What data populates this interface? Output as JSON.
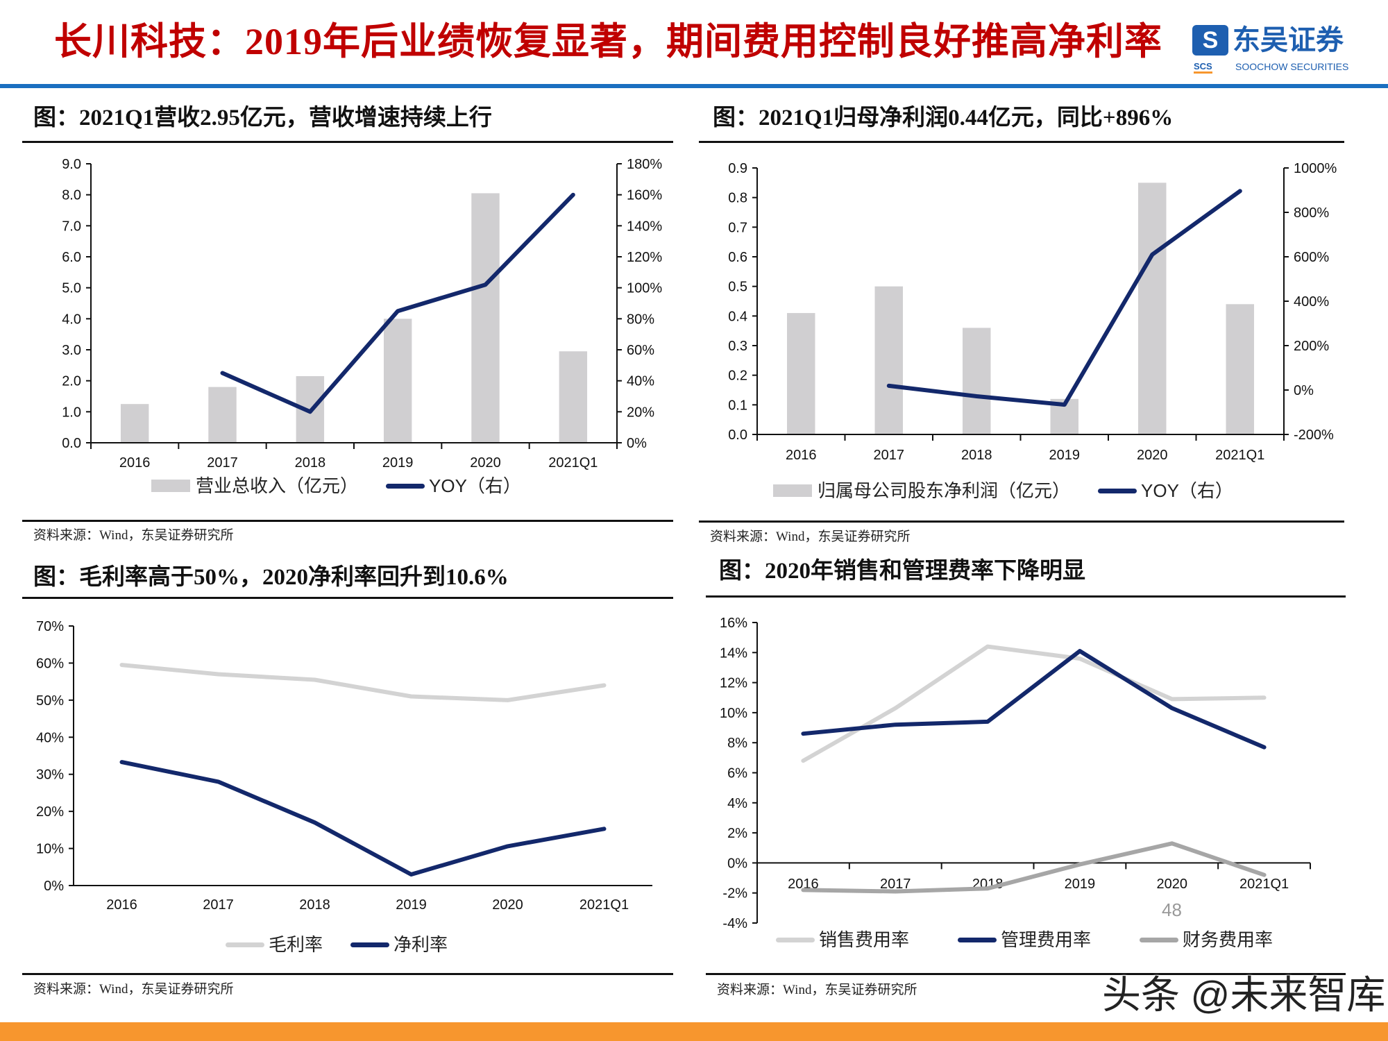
{
  "header": {
    "title": "长川科技：2019年后业绩恢复显著，期间费用控制良好推高净利率",
    "logo": {
      "mark": "S",
      "cn": "东吴证券",
      "scs": "SCS",
      "en": "SOOCHOW SECURITIES"
    },
    "accent_color": "#1a6fc0",
    "title_color": "#c00000"
  },
  "panels": [
    {
      "title": "图：2021Q1营收2.95亿元，营收增速持续上行",
      "source": "资料来源：Wind，东吴证券研究所"
    },
    {
      "title": "图：2021Q1归母净利润0.44亿元，同比+896%",
      "source": "资料来源：Wind，东吴证券研究所"
    },
    {
      "title": "图：毛利率高于50%，2020净利率回升到10.6%",
      "source": "资料来源：Wind，东吴证券研究所"
    },
    {
      "title": "图：2020年销售和管理费率下降明显",
      "source": "资料来源：Wind，东吴证券研究所"
    }
  ],
  "chart_data": [
    {
      "type": "bar+line",
      "categories": [
        "2016",
        "2017",
        "2018",
        "2019",
        "2020",
        "2021Q1"
      ],
      "y_left": {
        "range": [
          0,
          9
        ],
        "ticks": [
          0,
          1,
          2,
          3,
          4,
          5,
          6,
          7,
          8,
          9
        ],
        "tick_labels": [
          "0.0",
          "1.0",
          "2.0",
          "3.0",
          "4.0",
          "5.0",
          "6.0",
          "7.0",
          "8.0",
          "9.0"
        ]
      },
      "y_right": {
        "range": [
          0,
          180
        ],
        "ticks": [
          0,
          20,
          40,
          60,
          80,
          100,
          120,
          140,
          160,
          180
        ],
        "tick_labels": [
          "0%",
          "20%",
          "40%",
          "60%",
          "80%",
          "100%",
          "120%",
          "140%",
          "160%",
          "180%"
        ]
      },
      "series": [
        {
          "name": "营业总收入（亿元）",
          "type": "bar",
          "axis": "left",
          "color": "#d0cfd1",
          "values": [
            1.25,
            1.8,
            2.15,
            4.0,
            8.05,
            2.95
          ]
        },
        {
          "name": "YOY（右）",
          "type": "line",
          "axis": "right",
          "color": "#13286b",
          "values": [
            null,
            45,
            20,
            85,
            102,
            160
          ]
        }
      ],
      "grid": false,
      "legend": "bottom"
    },
    {
      "type": "bar+line",
      "categories": [
        "2016",
        "2017",
        "2018",
        "2019",
        "2020",
        "2021Q1"
      ],
      "y_left": {
        "range": [
          0,
          0.9
        ],
        "ticks": [
          0,
          0.1,
          0.2,
          0.3,
          0.4,
          0.5,
          0.6,
          0.7,
          0.8,
          0.9
        ],
        "tick_labels": [
          "0.0",
          "0.1",
          "0.2",
          "0.3",
          "0.4",
          "0.5",
          "0.6",
          "0.7",
          "0.8",
          "0.9"
        ]
      },
      "y_right": {
        "range": [
          -200,
          1000
        ],
        "ticks": [
          -200,
          0,
          200,
          400,
          600,
          800,
          1000
        ],
        "tick_labels": [
          "-200%",
          "0%",
          "200%",
          "400%",
          "600%",
          "800%",
          "1000%"
        ]
      },
      "series": [
        {
          "name": "归属母公司股东净利润（亿元）",
          "type": "bar",
          "axis": "left",
          "color": "#d0cfd1",
          "values": [
            0.41,
            0.5,
            0.36,
            0.12,
            0.85,
            0.44
          ]
        },
        {
          "name": "YOY（右）",
          "type": "line",
          "axis": "right",
          "color": "#13286b",
          "values": [
            null,
            19,
            -28,
            -66,
            610,
            896
          ]
        }
      ],
      "grid": false,
      "legend": "bottom"
    },
    {
      "type": "line",
      "categories": [
        "2016",
        "2017",
        "2018",
        "2019",
        "2020",
        "2021Q1"
      ],
      "y_left": {
        "range": [
          0,
          70
        ],
        "ticks": [
          0,
          10,
          20,
          30,
          40,
          50,
          60,
          70
        ],
        "tick_labels": [
          "0%",
          "10%",
          "20%",
          "30%",
          "40%",
          "50%",
          "60%",
          "70%"
        ]
      },
      "series": [
        {
          "name": "毛利率",
          "type": "line",
          "axis": "left",
          "color": "#d3d3d3",
          "values": [
            59.5,
            57.0,
            55.5,
            51.0,
            50.0,
            54.0
          ]
        },
        {
          "name": "净利率",
          "type": "line",
          "axis": "left",
          "color": "#13286b",
          "values": [
            33.3,
            28.0,
            17.0,
            3.0,
            10.6,
            15.3
          ]
        }
      ],
      "grid": false,
      "legend": "bottom"
    },
    {
      "type": "line",
      "categories": [
        "2016",
        "2017",
        "2018",
        "2019",
        "2020",
        "2021Q1"
      ],
      "y_left": {
        "range": [
          -4,
          16
        ],
        "ticks": [
          -4,
          -2,
          0,
          2,
          4,
          6,
          8,
          10,
          12,
          14,
          16
        ],
        "tick_labels": [
          "-4%",
          "-2%",
          "0%",
          "2%",
          "4%",
          "6%",
          "8%",
          "10%",
          "12%",
          "14%",
          "16%"
        ]
      },
      "series": [
        {
          "name": "销售费用率",
          "type": "line",
          "axis": "left",
          "color": "#d3d3d3",
          "values": [
            6.8,
            10.3,
            14.4,
            13.6,
            10.9,
            11.0
          ]
        },
        {
          "name": "管理费用率",
          "type": "line",
          "axis": "left",
          "color": "#13286b",
          "values": [
            8.6,
            9.2,
            9.4,
            14.1,
            10.3,
            7.7
          ]
        },
        {
          "name": "财务费用率",
          "type": "line",
          "axis": "left",
          "color": "#a6a6a6",
          "values": [
            -1.8,
            -1.9,
            -1.7,
            -0.1,
            1.3,
            -0.8
          ]
        }
      ],
      "grid": false,
      "legend": "bottom"
    }
  ],
  "watermark": {
    "text": "头条 @未来智库",
    "page_number": "48"
  }
}
